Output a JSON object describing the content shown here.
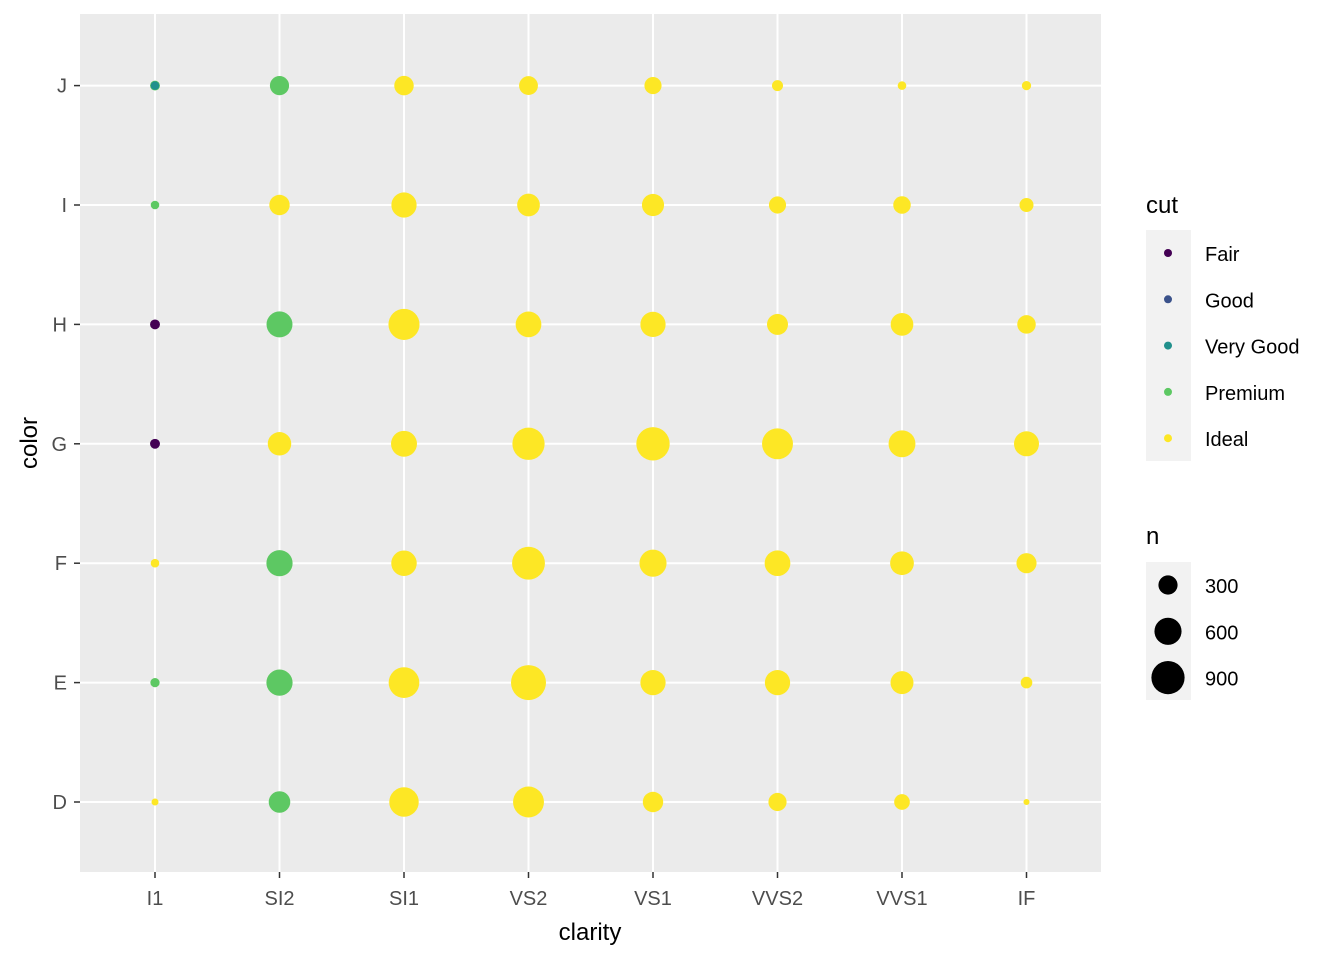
{
  "chart_data": {
    "type": "scatter",
    "x": {
      "label": "clarity",
      "categories": [
        "I1",
        "SI2",
        "SI1",
        "VS2",
        "VS1",
        "VVS2",
        "VVS1",
        "IF"
      ]
    },
    "y": {
      "label": "color",
      "categories": [
        "D",
        "E",
        "F",
        "G",
        "H",
        "I",
        "J"
      ]
    },
    "grid": true,
    "panel_background": "#ebebeb",
    "legends": {
      "color": {
        "title": "cut",
        "placement": "right",
        "entries": [
          {
            "name": "Fair",
            "color": "#440154"
          },
          {
            "name": "Good",
            "color": "#3b528b"
          },
          {
            "name": "Very Good",
            "color": "#21908c"
          },
          {
            "name": "Premium",
            "color": "#5dc863"
          },
          {
            "name": "Ideal",
            "color": "#fde725"
          }
        ]
      },
      "size": {
        "title": "n",
        "placement": "right",
        "breaks": [
          300,
          600,
          900
        ],
        "labels": [
          "300",
          "600",
          "900"
        ]
      }
    },
    "size_range": [
      0,
      1000
    ],
    "series": [
      {
        "name": "Ideal",
        "color": "#fde725",
        "points": [
          {
            "x": "I1",
            "y": "D",
            "n": 40
          },
          {
            "x": "SI2",
            "y": "D",
            "n": 360
          },
          {
            "x": "SI1",
            "y": "D",
            "n": 710
          },
          {
            "x": "VS2",
            "y": "D",
            "n": 780
          },
          {
            "x": "VS1",
            "y": "D",
            "n": 340
          },
          {
            "x": "VVS2",
            "y": "D",
            "n": 270
          },
          {
            "x": "VVS1",
            "y": "D",
            "n": 200
          },
          {
            "x": "IF",
            "y": "D",
            "n": 30
          },
          {
            "x": "I1",
            "y": "E",
            "n": 60
          },
          {
            "x": "SI2",
            "y": "E",
            "n": 540
          },
          {
            "x": "SI1",
            "y": "E",
            "n": 770
          },
          {
            "x": "VS2",
            "y": "E",
            "n": 1000
          },
          {
            "x": "VS1",
            "y": "E",
            "n": 520
          },
          {
            "x": "VVS2",
            "y": "E",
            "n": 520
          },
          {
            "x": "VVS1",
            "y": "E",
            "n": 430
          },
          {
            "x": "IF",
            "y": "E",
            "n": 110
          },
          {
            "x": "I1",
            "y": "F",
            "n": 60
          },
          {
            "x": "SI2",
            "y": "F",
            "n": 540
          },
          {
            "x": "SI1",
            "y": "F",
            "n": 530
          },
          {
            "x": "VS2",
            "y": "F",
            "n": 880
          },
          {
            "x": "VS1",
            "y": "F",
            "n": 600
          },
          {
            "x": "VVS2",
            "y": "F",
            "n": 540
          },
          {
            "x": "VVS1",
            "y": "F",
            "n": 460
          },
          {
            "x": "IF",
            "y": "F",
            "n": 330
          },
          {
            "x": "I1",
            "y": "G",
            "n": 40
          },
          {
            "x": "SI2",
            "y": "G",
            "n": 450
          },
          {
            "x": "SI1",
            "y": "G",
            "n": 550
          },
          {
            "x": "VS2",
            "y": "G",
            "n": 850
          },
          {
            "x": "VS1",
            "y": "G",
            "n": 910
          },
          {
            "x": "VVS2",
            "y": "G",
            "n": 780
          },
          {
            "x": "VVS1",
            "y": "G",
            "n": 590
          },
          {
            "x": "IF",
            "y": "G",
            "n": 510
          },
          {
            "x": "I1",
            "y": "H",
            "n": 60
          },
          {
            "x": "SI2",
            "y": "H",
            "n": 520
          },
          {
            "x": "SI1",
            "y": "H",
            "n": 790
          },
          {
            "x": "VS2",
            "y": "H",
            "n": 540
          },
          {
            "x": "VS1",
            "y": "H",
            "n": 520
          },
          {
            "x": "VVS2",
            "y": "H",
            "n": 360
          },
          {
            "x": "VVS1",
            "y": "H",
            "n": 420
          },
          {
            "x": "IF",
            "y": "H",
            "n": 280
          },
          {
            "x": "I1",
            "y": "I",
            "n": 50
          },
          {
            "x": "SI2",
            "y": "I",
            "n": 340
          },
          {
            "x": "SI1",
            "y": "I",
            "n": 520
          },
          {
            "x": "VS2",
            "y": "I",
            "n": 420
          },
          {
            "x": "VS1",
            "y": "I",
            "n": 400
          },
          {
            "x": "VVS2",
            "y": "I",
            "n": 240
          },
          {
            "x": "VVS1",
            "y": "I",
            "n": 250
          },
          {
            "x": "IF",
            "y": "I",
            "n": 160
          },
          {
            "x": "I1",
            "y": "J",
            "n": 40
          },
          {
            "x": "SI2",
            "y": "J",
            "n": 280
          },
          {
            "x": "SI1",
            "y": "J",
            "n": 310
          },
          {
            "x": "VS2",
            "y": "J",
            "n": 290
          },
          {
            "x": "VS1",
            "y": "J",
            "n": 240
          },
          {
            "x": "VVS2",
            "y": "J",
            "n": 100
          },
          {
            "x": "VVS1",
            "y": "J",
            "n": 60
          },
          {
            "x": "IF",
            "y": "J",
            "n": 70
          }
        ]
      },
      {
        "name": "Premium",
        "color": "#5dc863",
        "points": [
          {
            "x": "I1",
            "y": "J",
            "n": 80
          },
          {
            "x": "SI2",
            "y": "J",
            "n": 300
          },
          {
            "x": "SI2",
            "y": "H",
            "n": 550
          },
          {
            "x": "SI2",
            "y": "F",
            "n": 560
          },
          {
            "x": "SI2",
            "y": "E",
            "n": 560
          },
          {
            "x": "SI2",
            "y": "D",
            "n": 380
          },
          {
            "x": "I1",
            "y": "E",
            "n": 70
          },
          {
            "x": "I1",
            "y": "I",
            "n": 60
          }
        ]
      },
      {
        "name": "Very Good",
        "color": "#21908c",
        "points": [
          {
            "x": "I1",
            "y": "J",
            "n": 60
          }
        ]
      },
      {
        "name": "Good",
        "color": "#3b528b",
        "points": [
          {
            "x": "I1",
            "y": "H",
            "n": 70
          },
          {
            "x": "I1",
            "y": "G",
            "n": 70
          }
        ]
      },
      {
        "name": "Fair",
        "color": "#440154",
        "points": [
          {
            "x": "I1",
            "y": "H",
            "n": 80
          },
          {
            "x": "I1",
            "y": "G",
            "n": 80
          }
        ]
      }
    ]
  }
}
